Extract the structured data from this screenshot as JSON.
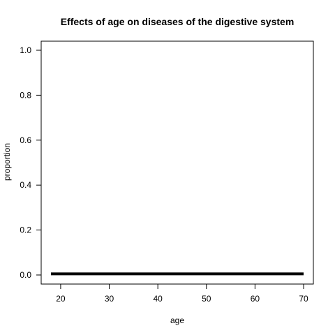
{
  "chart_data": {
    "type": "line",
    "title": "Effects of age on diseases of the digestive system",
    "xlabel": "age",
    "ylabel": "proportion",
    "xlim": [
      18,
      70
    ],
    "ylim": [
      0,
      1
    ],
    "x_ticks": [
      20,
      30,
      40,
      50,
      60,
      70
    ],
    "y_ticks": [
      0.0,
      0.2,
      0.4,
      0.6,
      0.8,
      1.0
    ],
    "y_tick_labels": [
      "0.0",
      "0.2",
      "0.4",
      "0.6",
      "0.8",
      "1.0"
    ],
    "grid": false,
    "series": [
      {
        "x": [
          18,
          70
        ],
        "y": [
          0.005,
          0.005
        ]
      }
    ]
  }
}
